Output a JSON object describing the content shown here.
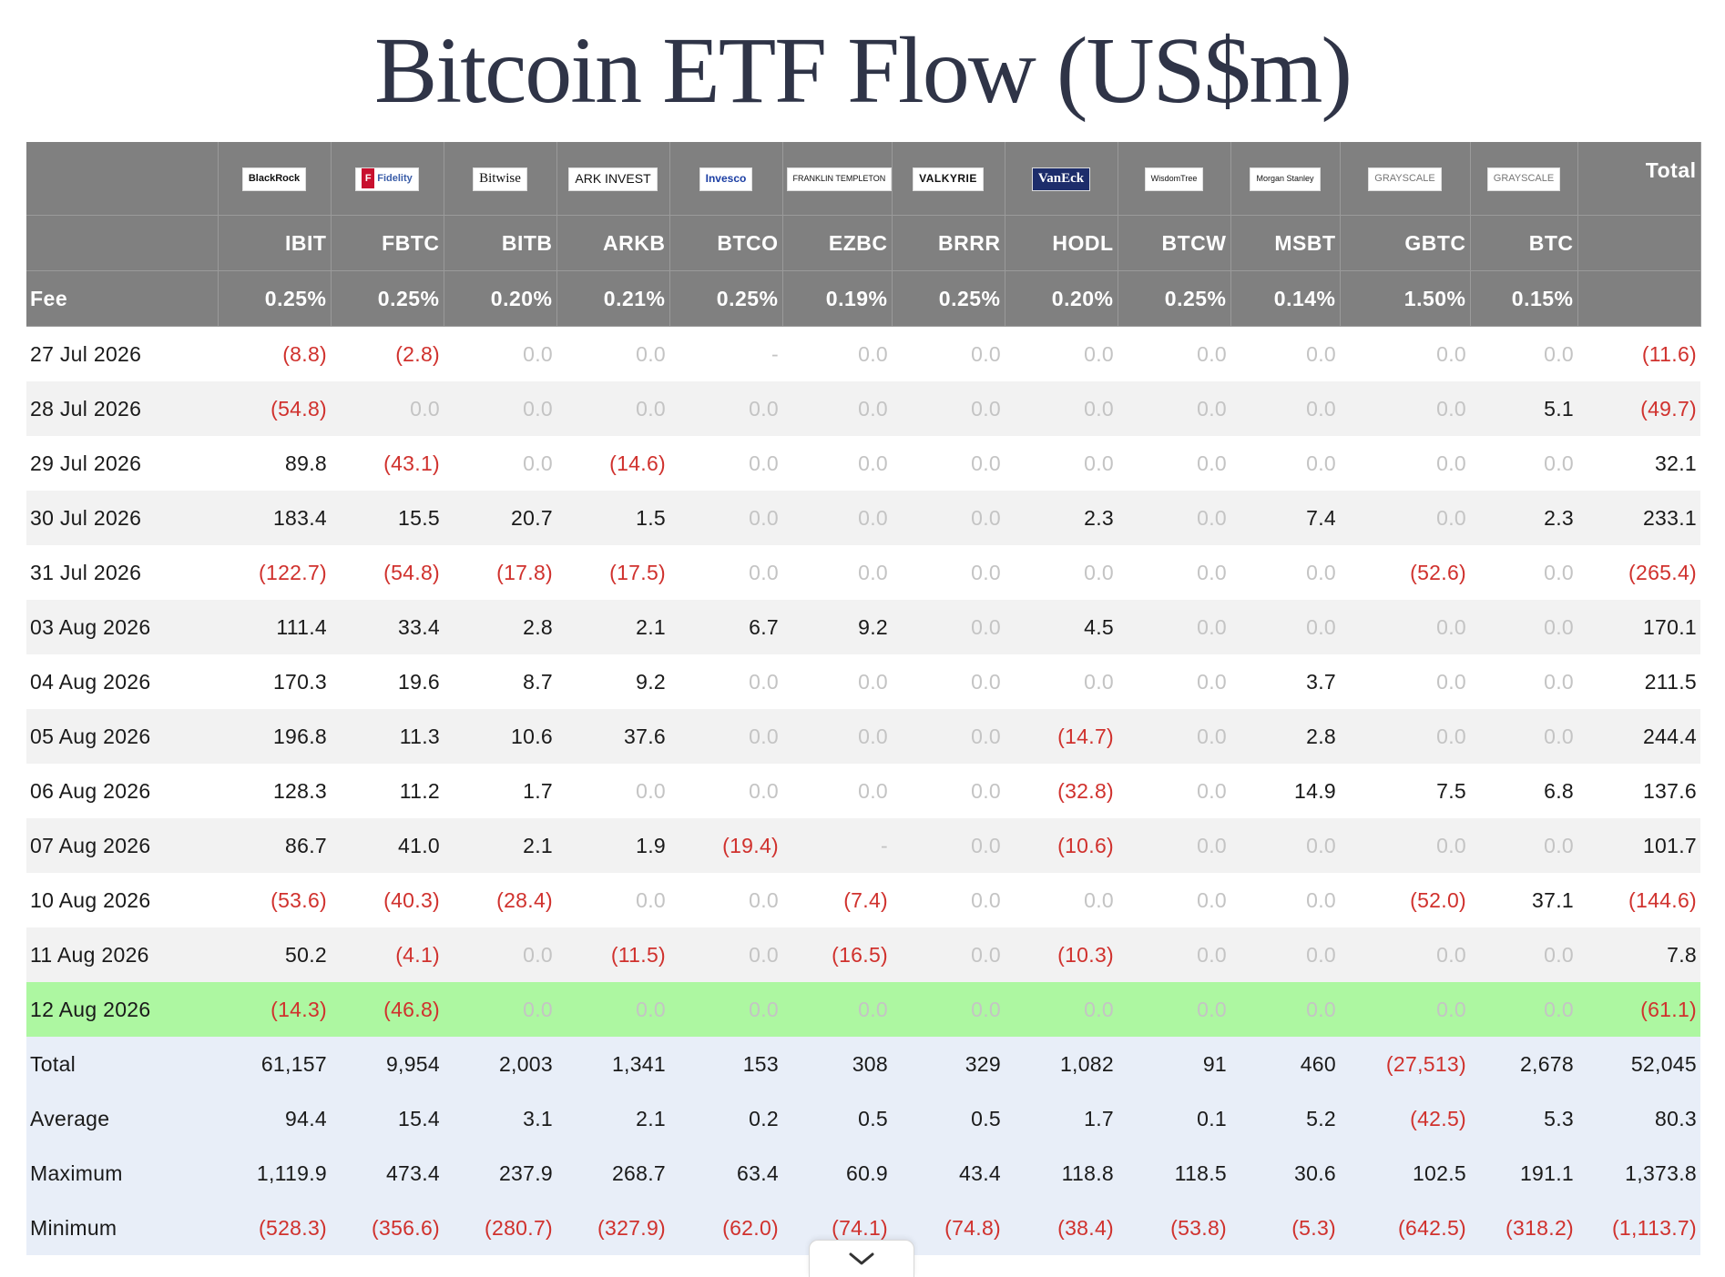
{
  "title": "Bitcoin ETF Flow (US$m)",
  "header": {
    "fee_label": "Fee",
    "total_label": "Total",
    "issuers": [
      "BlackRock",
      "Fidelity",
      "Bitwise",
      "ARK INVEST",
      "Invesco",
      "FRANKLIN TEMPLETON",
      "VALKYRIE",
      "VanEck",
      "WisdomTree",
      "Morgan Stanley",
      "GRAYSCALE",
      "GRAYSCALE"
    ],
    "tickers": [
      "IBIT",
      "FBTC",
      "BITB",
      "ARKB",
      "BTCO",
      "EZBC",
      "BRRR",
      "HODL",
      "BTCW",
      "MSBT",
      "GBTC",
      "BTC"
    ],
    "fees": [
      "0.25%",
      "0.25%",
      "0.20%",
      "0.21%",
      "0.25%",
      "0.19%",
      "0.25%",
      "0.20%",
      "0.25%",
      "0.14%",
      "1.50%",
      "0.15%"
    ]
  },
  "rows": [
    {
      "date": "27 Jul 2026",
      "values": [
        "(8.8)",
        "(2.8)",
        "0.0",
        "0.0",
        "-",
        "0.0",
        "0.0",
        "0.0",
        "0.0",
        "0.0",
        "0.0",
        "0.0"
      ],
      "total": "(11.6)"
    },
    {
      "date": "28 Jul 2026",
      "values": [
        "(54.8)",
        "0.0",
        "0.0",
        "0.0",
        "0.0",
        "0.0",
        "0.0",
        "0.0",
        "0.0",
        "0.0",
        "0.0",
        "5.1"
      ],
      "total": "(49.7)"
    },
    {
      "date": "29 Jul 2026",
      "values": [
        "89.8",
        "(43.1)",
        "0.0",
        "(14.6)",
        "0.0",
        "0.0",
        "0.0",
        "0.0",
        "0.0",
        "0.0",
        "0.0",
        "0.0"
      ],
      "total": "32.1"
    },
    {
      "date": "30 Jul 2026",
      "values": [
        "183.4",
        "15.5",
        "20.7",
        "1.5",
        "0.0",
        "0.0",
        "0.0",
        "2.3",
        "0.0",
        "7.4",
        "0.0",
        "2.3"
      ],
      "total": "233.1"
    },
    {
      "date": "31 Jul 2026",
      "values": [
        "(122.7)",
        "(54.8)",
        "(17.8)",
        "(17.5)",
        "0.0",
        "0.0",
        "0.0",
        "0.0",
        "0.0",
        "0.0",
        "(52.6)",
        "0.0"
      ],
      "total": "(265.4)"
    },
    {
      "date": "03 Aug 2026",
      "values": [
        "111.4",
        "33.4",
        "2.8",
        "2.1",
        "6.7",
        "9.2",
        "0.0",
        "4.5",
        "0.0",
        "0.0",
        "0.0",
        "0.0"
      ],
      "total": "170.1"
    },
    {
      "date": "04 Aug 2026",
      "values": [
        "170.3",
        "19.6",
        "8.7",
        "9.2",
        "0.0",
        "0.0",
        "0.0",
        "0.0",
        "0.0",
        "3.7",
        "0.0",
        "0.0"
      ],
      "total": "211.5"
    },
    {
      "date": "05 Aug 2026",
      "values": [
        "196.8",
        "11.3",
        "10.6",
        "37.6",
        "0.0",
        "0.0",
        "0.0",
        "(14.7)",
        "0.0",
        "2.8",
        "0.0",
        "0.0"
      ],
      "total": "244.4"
    },
    {
      "date": "06 Aug 2026",
      "values": [
        "128.3",
        "11.2",
        "1.7",
        "0.0",
        "0.0",
        "0.0",
        "0.0",
        "(32.8)",
        "0.0",
        "14.9",
        "7.5",
        "6.8"
      ],
      "total": "137.6"
    },
    {
      "date": "07 Aug 2026",
      "values": [
        "86.7",
        "41.0",
        "2.1",
        "1.9",
        "(19.4)",
        "-",
        "0.0",
        "(10.6)",
        "0.0",
        "0.0",
        "0.0",
        "0.0"
      ],
      "total": "101.7"
    },
    {
      "date": "10 Aug 2026",
      "values": [
        "(53.6)",
        "(40.3)",
        "(28.4)",
        "0.0",
        "0.0",
        "(7.4)",
        "0.0",
        "0.0",
        "0.0",
        "0.0",
        "(52.0)",
        "37.1"
      ],
      "total": "(144.6)"
    },
    {
      "date": "11 Aug 2026",
      "values": [
        "50.2",
        "(4.1)",
        "0.0",
        "(11.5)",
        "0.0",
        "(16.5)",
        "0.0",
        "(10.3)",
        "0.0",
        "0.0",
        "0.0",
        "0.0"
      ],
      "total": "7.8"
    },
    {
      "date": "12 Aug 2026",
      "values": [
        "(14.3)",
        "(46.8)",
        "0.0",
        "0.0",
        "0.0",
        "0.0",
        "0.0",
        "0.0",
        "0.0",
        "0.0",
        "0.0",
        "0.0"
      ],
      "total": "(61.1)",
      "highlight": true
    }
  ],
  "summary": [
    {
      "label": "Total",
      "values": [
        "61,157",
        "9,954",
        "2,003",
        "1,341",
        "153",
        "308",
        "329",
        "1,082",
        "91",
        "460",
        "(27,513)",
        "2,678"
      ],
      "total": "52,045"
    },
    {
      "label": "Average",
      "values": [
        "94.4",
        "15.4",
        "3.1",
        "2.1",
        "0.2",
        "0.5",
        "0.5",
        "1.7",
        "0.1",
        "5.2",
        "(42.5)",
        "5.3"
      ],
      "total": "80.3"
    },
    {
      "label": "Maximum",
      "values": [
        "1,119.9",
        "473.4",
        "237.9",
        "268.7",
        "63.4",
        "60.9",
        "43.4",
        "118.8",
        "118.5",
        "30.6",
        "102.5",
        "191.1"
      ],
      "total": "1,373.8"
    },
    {
      "label": "Minimum",
      "values": [
        "(528.3)",
        "(356.6)",
        "(280.7)",
        "(327.9)",
        "(62.0)",
        "(74.1)",
        "(74.8)",
        "(38.4)",
        "(53.8)",
        "(5.3)",
        "(642.5)",
        "(318.2)"
      ],
      "total": "(1,113.7)"
    }
  ],
  "colors": {
    "header_bg": "#808080",
    "negative": "#d0312d",
    "zero": "#c4c4c4",
    "highlight_row": "#adf7a1",
    "summary_bg": "#e8eef8"
  },
  "icons": {
    "scroll_down": "chevron-down-icon"
  }
}
